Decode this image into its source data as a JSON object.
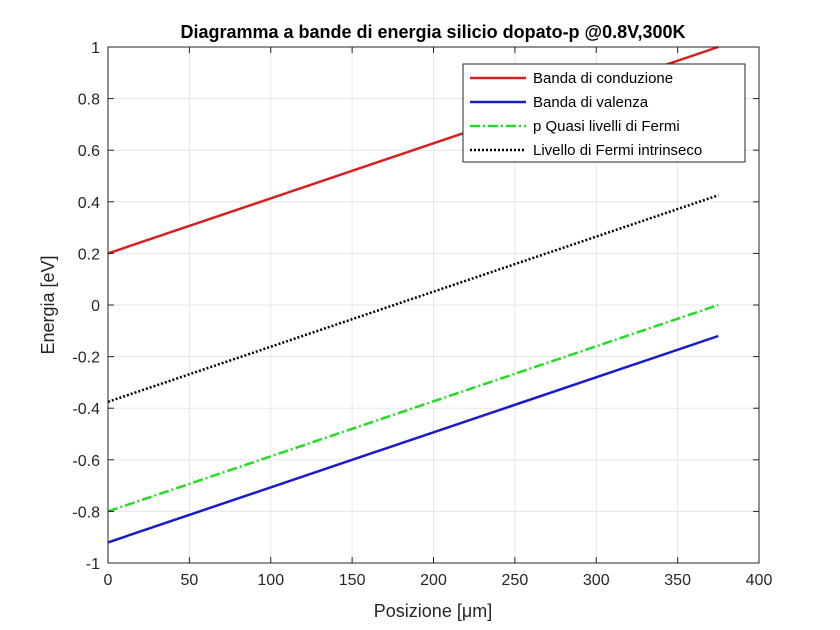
{
  "chart_data": {
    "type": "line",
    "title": "Diagramma a bande di energia silicio dopato-p  @0.8V,300K",
    "xlabel": "Posizione [μm]",
    "ylabel": "Energia [eV]",
    "xlim": [
      0,
      400
    ],
    "ylim": [
      -1,
      1
    ],
    "xticks": [
      0,
      50,
      100,
      150,
      200,
      250,
      300,
      350,
      400
    ],
    "yticks": [
      -1,
      -0.8,
      -0.6,
      -0.4,
      -0.2,
      0,
      0.2,
      0.4,
      0.6,
      0.8,
      1
    ],
    "xtick_labels": [
      "0",
      "50",
      "100",
      "150",
      "200",
      "250",
      "300",
      "350",
      "400"
    ],
    "ytick_labels": [
      "-1",
      "-0.8",
      "-0.6",
      "-0.4",
      "-0.2",
      "0",
      "0.2",
      "0.4",
      "0.6",
      "0.8",
      "1"
    ],
    "grid": true,
    "legend_position": "top-right",
    "series": [
      {
        "name": "Banda di conduzione",
        "x": [
          0,
          375
        ],
        "y": [
          0.2,
          1.0
        ],
        "color": "#d62020",
        "style": "solid"
      },
      {
        "name": "Banda di valenza",
        "x": [
          0,
          375
        ],
        "y": [
          -0.92,
          -0.12
        ],
        "color": "#1a1acc",
        "style": "solid"
      },
      {
        "name": "p Quasi livelli di Fermi",
        "x": [
          0,
          375
        ],
        "y": [
          -0.8,
          0.0
        ],
        "color": "#22dd22",
        "style": "dashdot"
      },
      {
        "name": "Livello di Fermi intrinseco",
        "x": [
          0,
          375
        ],
        "y": [
          -0.375,
          0.425
        ],
        "color": "#000000",
        "style": "dotted"
      }
    ]
  }
}
